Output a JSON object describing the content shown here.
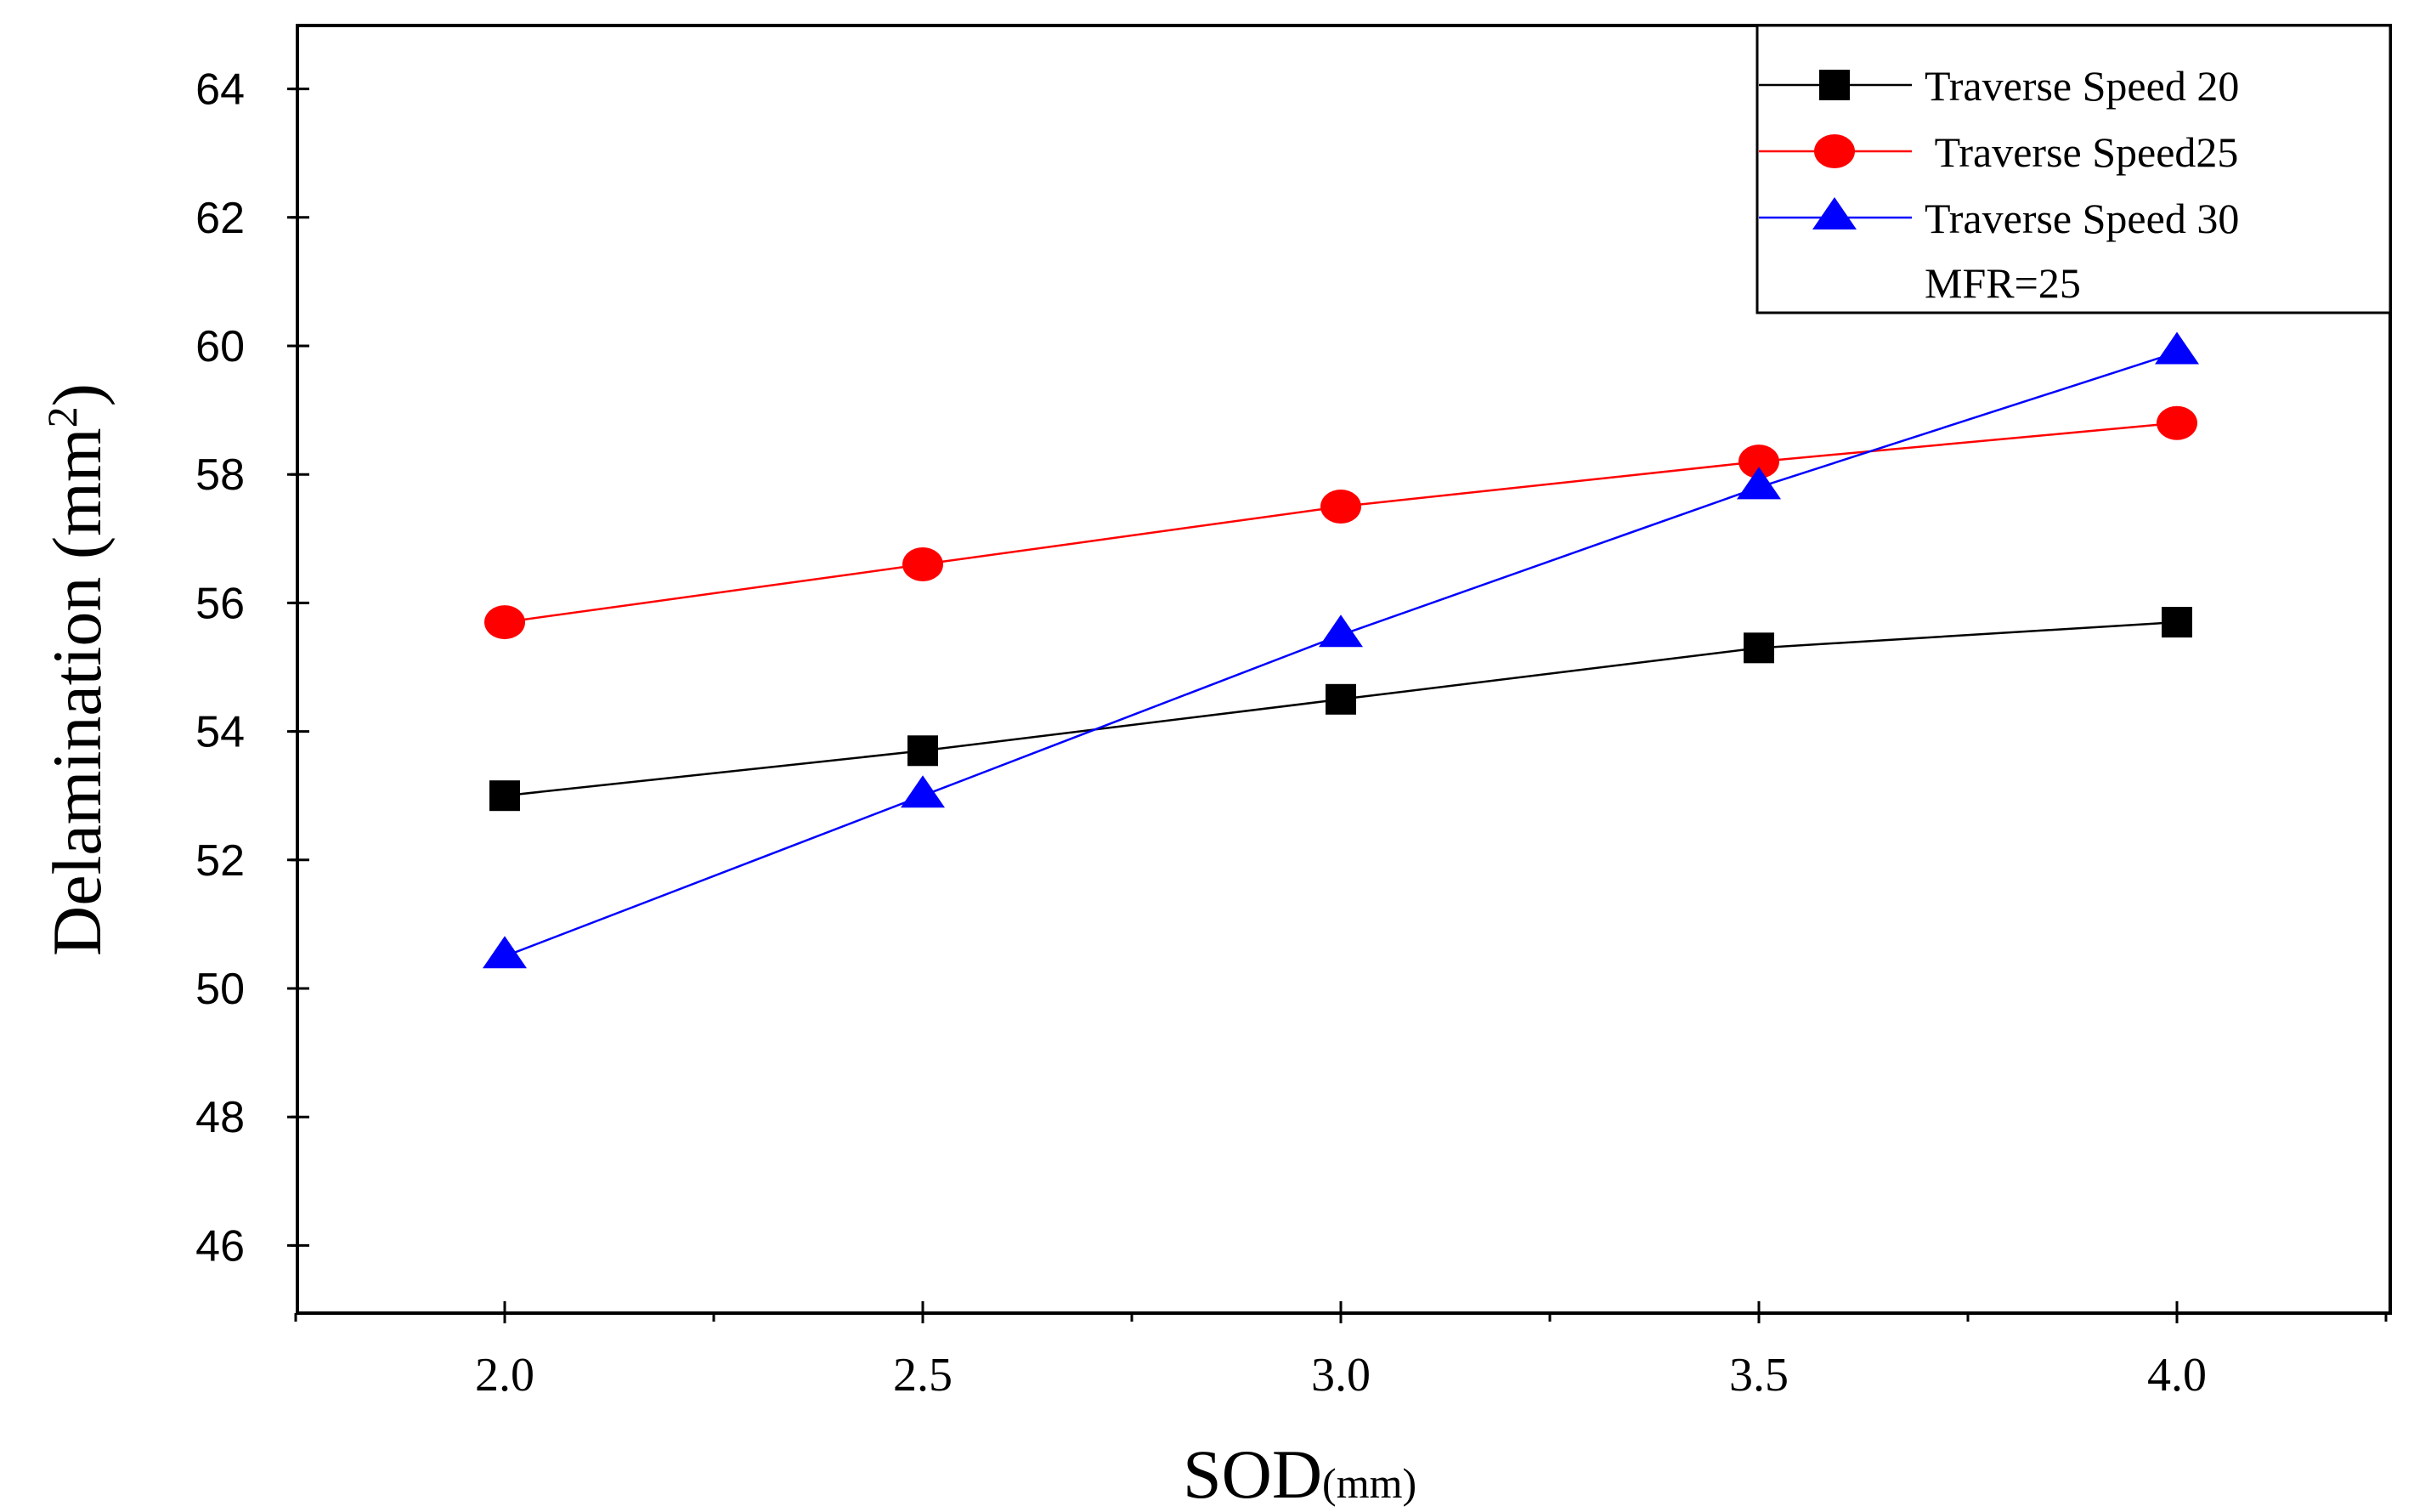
{
  "chart_data": {
    "type": "line",
    "title": "",
    "xlabel": "SOD",
    "xlabel_unit": "(mm)",
    "ylabel": "Delamination (mm",
    "ylabel_superscript": "2",
    "ylabel_close": ")",
    "xlim": [
      1.75,
      4.25
    ],
    "ylim": [
      45,
      65
    ],
    "x_ticks": [
      2.0,
      2.5,
      3.0,
      3.5,
      4.0
    ],
    "x_tick_labels": [
      "2.0",
      "2.5",
      "3.0",
      "3.5",
      "4.0"
    ],
    "y_ticks": [
      46,
      48,
      50,
      52,
      54,
      56,
      58,
      60,
      62,
      64
    ],
    "y_tick_labels": [
      "46",
      "48",
      "50",
      "52",
      "54",
      "56",
      "58",
      "60",
      "62",
      "64"
    ],
    "grid": false,
    "legend_position": "top-right",
    "x": [
      2.0,
      2.5,
      3.0,
      3.5,
      4.0
    ],
    "series": [
      {
        "name": "Traverse Speed 20",
        "marker": "square",
        "color": "#000000",
        "values": [
          53.0,
          53.7,
          54.5,
          55.3,
          55.7
        ]
      },
      {
        "name": " Traverse Speed25",
        "marker": "circle",
        "color": "#ff0000",
        "values": [
          55.7,
          56.6,
          57.5,
          58.2,
          58.8
        ]
      },
      {
        "name": "Traverse Speed 30",
        "marker": "triangle",
        "color": "#0000ff",
        "values": [
          50.5,
          53.0,
          55.5,
          57.8,
          59.9
        ]
      }
    ],
    "legend_note": "MFR=25"
  }
}
